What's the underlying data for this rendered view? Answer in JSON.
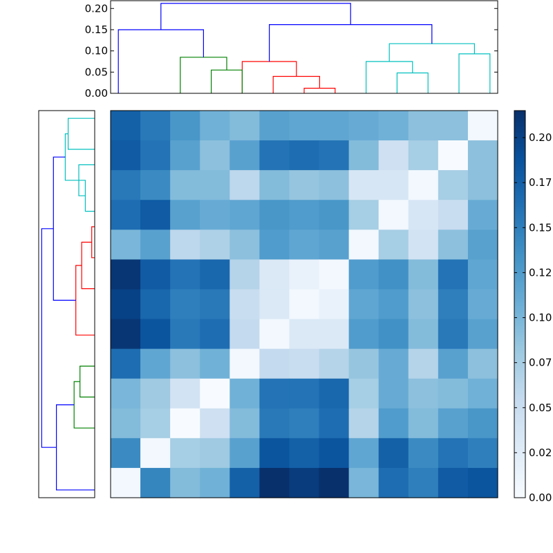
{
  "chart_data": {
    "type": "heatmap",
    "title": "",
    "xlabel": "",
    "ylabel": "",
    "colormap": "Blues",
    "n_rows": 13,
    "n_cols": 13,
    "values": [
      [
        0.175,
        0.155,
        0.13,
        0.105,
        0.095,
        0.12,
        0.115,
        0.115,
        0.11,
        0.105,
        0.09,
        0.09,
        0.005
      ],
      [
        0.18,
        0.16,
        0.12,
        0.09,
        0.12,
        0.16,
        0.165,
        0.16,
        0.095,
        0.045,
        0.075,
        0.0,
        0.09
      ],
      [
        0.155,
        0.14,
        0.095,
        0.095,
        0.06,
        0.095,
        0.085,
        0.09,
        0.035,
        0.035,
        0.005,
        0.075,
        0.09
      ],
      [
        0.165,
        0.18,
        0.12,
        0.11,
        0.115,
        0.13,
        0.125,
        0.13,
        0.075,
        0.005,
        0.035,
        0.05,
        0.11
      ],
      [
        0.1,
        0.12,
        0.06,
        0.07,
        0.09,
        0.125,
        0.115,
        0.12,
        0.005,
        0.075,
        0.04,
        0.09,
        0.12
      ],
      [
        0.21,
        0.18,
        0.16,
        0.17,
        0.065,
        0.03,
        0.015,
        0.005,
        0.125,
        0.135,
        0.095,
        0.16,
        0.115
      ],
      [
        0.2,
        0.17,
        0.15,
        0.155,
        0.05,
        0.03,
        0.005,
        0.015,
        0.115,
        0.125,
        0.09,
        0.15,
        0.11
      ],
      [
        0.21,
        0.185,
        0.155,
        0.165,
        0.055,
        0.005,
        0.03,
        0.03,
        0.125,
        0.135,
        0.095,
        0.155,
        0.12
      ],
      [
        0.165,
        0.115,
        0.09,
        0.105,
        0.005,
        0.055,
        0.05,
        0.065,
        0.085,
        0.11,
        0.065,
        0.12,
        0.09
      ],
      [
        0.1,
        0.08,
        0.04,
        0.0,
        0.105,
        0.16,
        0.16,
        0.17,
        0.075,
        0.11,
        0.09,
        0.095,
        0.105
      ],
      [
        0.095,
        0.075,
        0.0,
        0.045,
        0.095,
        0.155,
        0.15,
        0.165,
        0.065,
        0.125,
        0.095,
        0.12,
        0.13
      ],
      [
        0.14,
        0.005,
        0.075,
        0.08,
        0.12,
        0.185,
        0.175,
        0.185,
        0.115,
        0.175,
        0.14,
        0.16,
        0.15
      ],
      [
        0.005,
        0.145,
        0.095,
        0.105,
        0.175,
        0.215,
        0.205,
        0.215,
        0.1,
        0.165,
        0.15,
        0.18,
        0.185
      ]
    ],
    "colorbar": {
      "range": [
        0,
        0.215
      ],
      "tick_values": [
        0,
        0.025,
        0.05,
        0.075,
        0.1,
        0.125,
        0.15,
        0.175,
        0.2
      ],
      "tick_labels": [
        "0.00",
        "0.02",
        "0.05",
        "0.07",
        "0.10",
        "0.12",
        "0.15",
        "0.17",
        "0.20"
      ]
    },
    "top_dendrogram": {
      "yrange": [
        0,
        0.22
      ],
      "tick_values": [
        0,
        0.05,
        0.1,
        0.15,
        0.2
      ],
      "tick_labels": [
        "0.00",
        "0.05",
        "0.10",
        "0.15",
        "0.20"
      ],
      "links": [
        {
          "a": 12.5,
          "b": 14.5,
          "h": 0.012,
          "color": "#ff0000"
        },
        {
          "a": 10.5,
          "b": 13.5,
          "h": 0.04,
          "color": "#ff0000"
        },
        {
          "a": 8.5,
          "b": 12.0,
          "h": 0.075,
          "color": "#ff0000"
        },
        {
          "a": 6.5,
          "b": 8.5,
          "h": 0.055,
          "color": "#008000"
        },
        {
          "a": 4.5,
          "b": 7.5,
          "h": 0.085,
          "color": "#008000"
        },
        {
          "a": 0.5,
          "b": 6.0,
          "h": 0.15,
          "color": "#0000ff"
        },
        {
          "a": 18.5,
          "b": 20.5,
          "h": 0.048,
          "color": "#00bfbf"
        },
        {
          "a": 16.5,
          "b": 19.5,
          "h": 0.075,
          "color": "#00bfbf"
        },
        {
          "a": 22.5,
          "b": 24.5,
          "h": 0.093,
          "color": "#00bfbf"
        },
        {
          "a": 18.0,
          "b": 23.5,
          "h": 0.117,
          "color": "#00bfbf"
        },
        {
          "a": 10.25,
          "b": 20.75,
          "h": 0.162,
          "color": "#0000ff"
        },
        {
          "a": 3.25,
          "b": 15.5,
          "h": 0.212,
          "color": "#0000ff"
        }
      ]
    },
    "left_dendrogram": {
      "links": [
        {
          "a": 0.5,
          "b": 2.5,
          "h": 0.045,
          "color": "#00bfbf"
        },
        {
          "a": 4.5,
          "b": 6.5,
          "h": 0.016,
          "color": "#00bfbf"
        },
        {
          "a": 3.5,
          "b": 5.5,
          "h": 0.027,
          "color": "#00bfbf"
        },
        {
          "a": 1.5,
          "b": 4.5,
          "h": 0.05,
          "color": "#00bfbf"
        },
        {
          "a": 7.5,
          "b": 9.5,
          "h": 0.005,
          "color": "#ff0000"
        },
        {
          "a": 8.5,
          "b": 11.5,
          "h": 0.022,
          "color": "#ff0000"
        },
        {
          "a": 10.0,
          "b": 14.5,
          "h": 0.032,
          "color": "#ff0000"
        },
        {
          "a": 16.5,
          "b": 18.5,
          "h": 0.025,
          "color": "#008000"
        },
        {
          "a": 17.5,
          "b": 20.5,
          "h": 0.035,
          "color": "#008000"
        },
        {
          "a": 19.0,
          "b": 24.5,
          "h": 0.065,
          "color": "#0000ff"
        },
        {
          "a": 3.0,
          "b": 12.25,
          "h": 0.07,
          "color": "#0000ff"
        },
        {
          "a": 7.625,
          "b": 21.75,
          "h": 0.09,
          "color": "#0000ff"
        }
      ]
    }
  }
}
